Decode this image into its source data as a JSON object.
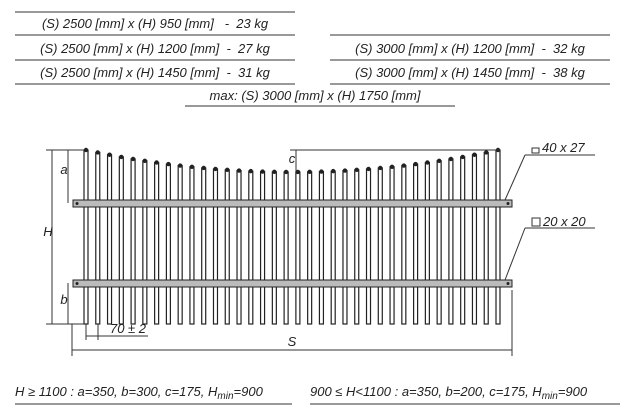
{
  "specs": {
    "left": [
      "(S) 2500 [mm] x (H) 950 [mm]   -  23 kg",
      "(S) 2500 [mm] x (H) 1200 [mm]  -  27 kg",
      "(S) 2500 [mm] x (H) 1450 [mm]  -  31 kg"
    ],
    "right": [
      "(S) 3000 [mm] x (H) 1200 [mm]  -  32 kg",
      "(S) 3000 [mm] x (H) 1450 [mm]  -  38 kg"
    ],
    "max": "max: (S) 3000 [mm] x (H) 1750 [mm]"
  },
  "drawing": {
    "a": "a",
    "b": "b",
    "c": "c",
    "H": "H",
    "S": "S",
    "spacing": "70 ± 2",
    "post_profile": "40 x 27",
    "rail_profile": "20 x 20"
  },
  "notes": [
    {
      "parts": [
        "H ≥ 1100 : a=350, b=300, c=175, H",
        "min",
        "=900"
      ]
    },
    {
      "parts": [
        "900 ≤ H<1100 : a=350, b=200, c=175, H",
        "min",
        "=900"
      ]
    }
  ]
}
